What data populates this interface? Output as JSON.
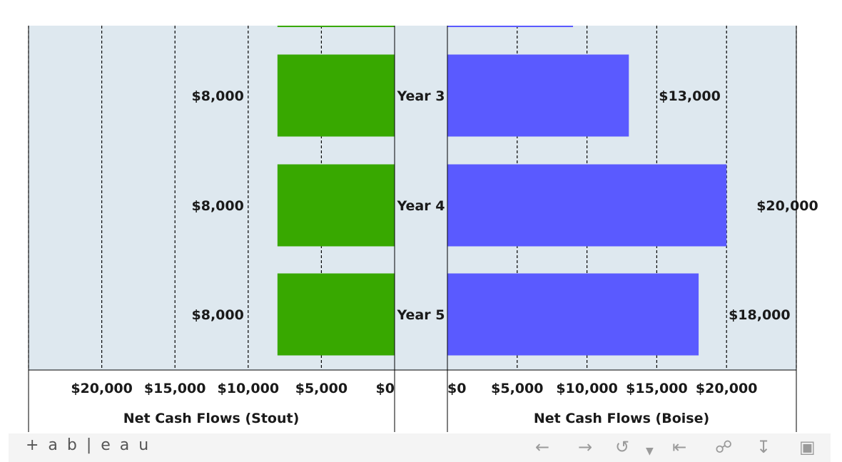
{
  "chart_data": [
    {
      "type": "bar",
      "orientation": "horizontal",
      "direction": "reversed",
      "categories": [
        "Year 3",
        "Year 4",
        "Year 5"
      ],
      "values": [
        8000,
        8000,
        8000
      ],
      "value_labels": [
        "$8,000",
        "$8,000",
        "$8,000"
      ],
      "xlabel": "Net Cash Flows (Stout)",
      "ticks": [
        0,
        5000,
        10000,
        15000,
        20000
      ],
      "tick_labels": [
        "$0",
        "$5,000",
        "$10,000",
        "$15,000",
        "$20,000"
      ],
      "xlim": [
        0,
        25000
      ],
      "color": "#38A800"
    },
    {
      "type": "bar",
      "orientation": "horizontal",
      "categories": [
        "Year 3",
        "Year 4",
        "Year 5"
      ],
      "values": [
        13000,
        20000,
        18000
      ],
      "value_labels": [
        "$13,000",
        "$20,000",
        "$18,000"
      ],
      "xlabel": "Net Cash Flows (Boise)",
      "ticks": [
        0,
        5000,
        10000,
        15000,
        20000
      ],
      "tick_labels": [
        "$0",
        "$5,000",
        "$10,000",
        "$15,000",
        "$20,000"
      ],
      "xlim": [
        0,
        25000
      ],
      "color": "#5A5AFF"
    }
  ],
  "partial_top_bars": {
    "stout": 8000,
    "boise": 9000
  },
  "grid": "vertical dashed",
  "background": "#DEE8EF",
  "footer": {
    "brand": "+ a b | e a u",
    "icons": [
      "undo-icon",
      "redo-icon",
      "revert-icon",
      "dropdown-icon",
      "reset-icon",
      "share-icon",
      "download-icon",
      "fullscreen-icon"
    ]
  }
}
